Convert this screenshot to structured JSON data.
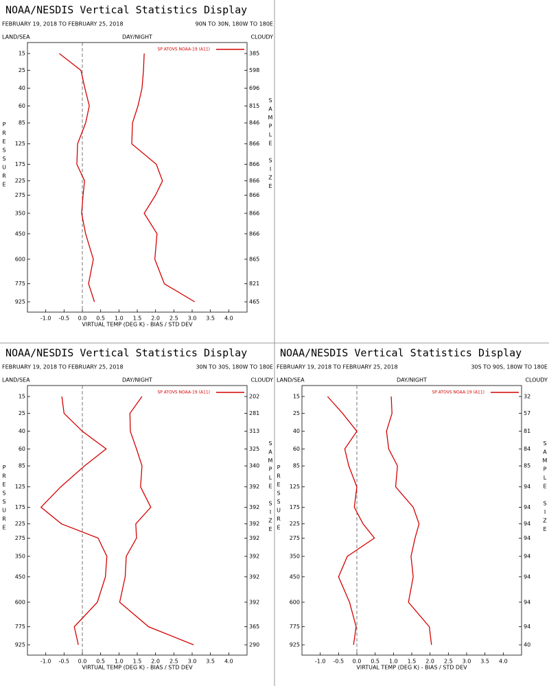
{
  "chart_data": [
    {
      "type": "line",
      "title": "NOAA/NESDIS Vertical Statistics Display",
      "subtitle": "FEBRUARY 19, 2018 TO FEBRUARY 25, 2018",
      "region": "90N TO 30N, 180W TO 180E",
      "left_header": "LAND/SEA",
      "center_header": "DAY/NIGHT",
      "right_header": "CLOUDY",
      "ylabel": "PRESSURE",
      "y2label": "SAMPLE SIZE",
      "xlabel": "VIRTUAL TEMP (DEG K) - BIAS / STD DEV",
      "categories": [
        15,
        25,
        40,
        60,
        85,
        125,
        175,
        225,
        275,
        350,
        450,
        600,
        775,
        925
      ],
      "sample_size": [
        385,
        598,
        696,
        815,
        846,
        866,
        866,
        866,
        866,
        866,
        866,
        865,
        821,
        465
      ],
      "series": [
        {
          "name": "SP ATOVS NOAA-19 (A11)",
          "color": "#d40000",
          "values": [
            -0.63,
            -0.04,
            0.07,
            0.19,
            0.09,
            -0.13,
            -0.15,
            0.06,
            0.02,
            -0.02,
            0.09,
            0.3,
            0.17,
            0.33
          ]
        },
        {
          "color": "#d40000",
          "values": [
            1.69,
            1.67,
            1.63,
            1.52,
            1.37,
            1.35,
            2.02,
            2.19,
            2.0,
            1.69,
            2.04,
            1.98,
            2.24,
            3.07
          ]
        }
      ],
      "xlim": [
        -1.5,
        4.5
      ],
      "ylim": [
        15,
        925
      ],
      "xticks": [
        {
          "value": -1,
          "label": "-1.0"
        },
        -0.5,
        {
          "value": 0,
          "label": "0.0"
        },
        0.5,
        {
          "value": 1,
          "label": "1.0"
        },
        1.5,
        {
          "value": 2,
          "label": "2.0"
        },
        2.5,
        {
          "value": 3,
          "label": "3.0"
        },
        3.5,
        {
          "value": 4,
          "label": "4.0"
        }
      ]
    },
    {
      "type": "line",
      "title": "NOAA/NESDIS Vertical Statistics Display",
      "subtitle": "FEBRUARY 19, 2018 TO FEBRUARY 25, 2018",
      "region": "30N TO 30S, 180W TO 180E",
      "left_header": "LAND/SEA",
      "center_header": "DAY/NIGHT",
      "right_header": "CLOUDY",
      "ylabel": "PRESSURE",
      "y2label": "SAMPLE SIZE",
      "xlabel": "VIRTUAL TEMP (DEG K) - BIAS / STD DEV",
      "categories": [
        15,
        25,
        40,
        60,
        85,
        125,
        175,
        225,
        275,
        350,
        450,
        600,
        775,
        925
      ],
      "sample_size": [
        202,
        281,
        313,
        325,
        340,
        392,
        392,
        392,
        392,
        392,
        392,
        392,
        365,
        290
      ],
      "series": [
        {
          "name": "SP ATOVS NOAA-19 (A11)",
          "color": "#d40000",
          "values": [
            -0.56,
            -0.5,
            0.0,
            0.65,
            0.06,
            -0.59,
            -1.13,
            -0.57,
            0.43,
            0.67,
            0.63,
            0.41,
            -0.22,
            -0.11
          ]
        },
        {
          "color": "#d40000",
          "values": [
            1.63,
            1.3,
            1.31,
            1.48,
            1.63,
            1.59,
            1.87,
            1.46,
            1.48,
            1.2,
            1.17,
            1.02,
            1.81,
            3.04
          ]
        }
      ],
      "xlim": [
        -1.5,
        4.5
      ],
      "ylim": [
        15,
        925
      ],
      "xticks": [
        {
          "value": -1,
          "label": "-1.0"
        },
        -0.5,
        {
          "value": 0,
          "label": "0.0"
        },
        0.5,
        {
          "value": 1,
          "label": "1.0"
        },
        1.5,
        {
          "value": 2,
          "label": "2.0"
        },
        2.5,
        {
          "value": 3,
          "label": "3.0"
        },
        3.5,
        {
          "value": 4,
          "label": "4.0"
        }
      ]
    },
    {
      "type": "line",
      "title": "NOAA/NESDIS Vertical Statistics Display",
      "subtitle": "FEBRUARY 19, 2018 TO FEBRUARY 25, 2018",
      "region": "30S TO 90S, 180W TO 180E",
      "left_header": "LAND/SEA",
      "center_header": "DAY/NIGHT",
      "right_header": "CLOUDY",
      "ylabel": "PRESSURE",
      "y2label": "SAMPLE SIZE",
      "xlabel": "VIRTUAL TEMP (DEG K) - BIAS / STD DEV",
      "categories": [
        15,
        25,
        40,
        60,
        85,
        125,
        175,
        225,
        275,
        350,
        450,
        600,
        775,
        925
      ],
      "sample_size": [
        32,
        57,
        81,
        84,
        85,
        94,
        94,
        94,
        94,
        94,
        94,
        94,
        94,
        40
      ],
      "series": [
        {
          "name": "SP ATOVS NOAA-19 (A11)",
          "color": "#d40000",
          "values": [
            -0.8,
            -0.39,
            0.0,
            -0.33,
            -0.22,
            0.0,
            -0.07,
            0.17,
            0.48,
            -0.26,
            -0.5,
            -0.2,
            -0.02,
            -0.09
          ]
        },
        {
          "color": "#d40000",
          "values": [
            0.94,
            0.96,
            0.81,
            0.87,
            1.11,
            1.06,
            1.54,
            1.7,
            1.59,
            1.48,
            1.54,
            1.41,
            1.98,
            2.04
          ]
        }
      ],
      "xlim": [
        -1.5,
        4.5
      ],
      "ylim": [
        15,
        925
      ],
      "xticks": [
        {
          "value": -1,
          "label": "-1.0"
        },
        -0.5,
        {
          "value": 0,
          "label": "0.0"
        },
        0.5,
        {
          "value": 1,
          "label": "1.0"
        },
        1.5,
        {
          "value": 2,
          "label": "2.0"
        },
        2.5,
        {
          "value": 3,
          "label": "3.0"
        },
        3.5,
        {
          "value": 4,
          "label": "4.0"
        }
      ]
    }
  ]
}
